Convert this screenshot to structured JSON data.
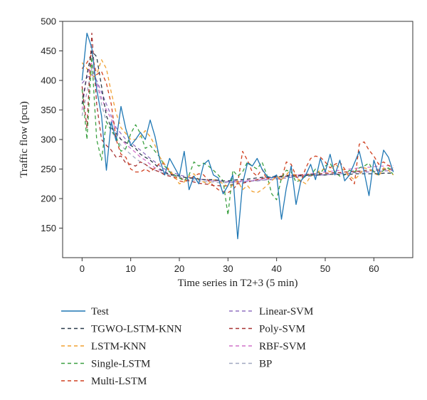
{
  "chart_data": {
    "type": "line",
    "title": "",
    "xlabel": "Time series in T2+3 (5 min)",
    "ylabel": "Traffic flow (pcu)",
    "xlim": [
      -4,
      68
    ],
    "ylim": [
      100,
      500
    ],
    "xticks": [
      0,
      10,
      20,
      30,
      40,
      50,
      60
    ],
    "yticks": [
      150,
      200,
      250,
      300,
      350,
      400,
      450,
      500
    ],
    "grid": false,
    "legend_position": "bottom",
    "series": [
      {
        "name": "Test",
        "color": "#1f77b4",
        "dash": "solid",
        "values": [
          400,
          480,
          455,
          385,
          340,
          248,
          330,
          298,
          356,
          318,
          290,
          300,
          312,
          300,
          333,
          305,
          265,
          240,
          268,
          253,
          238,
          280,
          215,
          238,
          225,
          258,
          265,
          240,
          235,
          208,
          222,
          240,
          132,
          225,
          260,
          255,
          268,
          250,
          238,
          235,
          240,
          165,
          218,
          255,
          190,
          230,
          240,
          258,
          232,
          268,
          245,
          275,
          240,
          265,
          230,
          240,
          260,
          280,
          245,
          205,
          265,
          240,
          282,
          270,
          245
        ]
      },
      {
        "name": "TGWO-LSTM-KNN",
        "color": "#2a3a4a",
        "dash": "5,4",
        "values": [
          360,
          410,
          450,
          440,
          390,
          340,
          320,
          310,
          300,
          295,
          290,
          285,
          275,
          270,
          265,
          258,
          250,
          245,
          240,
          240,
          238,
          236,
          235,
          234,
          233,
          232,
          232,
          232,
          231,
          230,
          230,
          231,
          232,
          232,
          233,
          234,
          235,
          236,
          236,
          237,
          237,
          237,
          238,
          238,
          238,
          239,
          239,
          240,
          240,
          240,
          240,
          241,
          241,
          241,
          241,
          241,
          242,
          242,
          242,
          242,
          242,
          242,
          243,
          243,
          243
        ]
      },
      {
        "name": "LSTM-KNN",
        "color": "#f0a030",
        "dash": "5,4",
        "values": [
          430,
          420,
          405,
          410,
          435,
          420,
          380,
          345,
          320,
          310,
          300,
          300,
          305,
          315,
          305,
          290,
          270,
          258,
          248,
          238,
          225,
          228,
          238,
          242,
          232,
          228,
          225,
          232,
          230,
          225,
          220,
          222,
          230,
          215,
          222,
          212,
          210,
          215,
          222,
          230,
          238,
          232,
          240,
          250,
          235,
          230,
          225,
          238,
          242,
          248,
          250,
          245,
          258,
          252,
          248,
          238,
          232,
          240,
          252,
          250,
          245,
          238,
          252,
          248,
          240
        ]
      },
      {
        "name": "Single-LSTM",
        "color": "#3aa040",
        "dash": "5,4",
        "values": [
          385,
          300,
          440,
          300,
          265,
          330,
          315,
          305,
          280,
          285,
          310,
          325,
          310,
          285,
          290,
          280,
          270,
          255,
          245,
          240,
          235,
          230,
          240,
          262,
          255,
          260,
          255,
          248,
          240,
          230,
          172,
          248,
          238,
          245,
          262,
          255,
          250,
          262,
          240,
          208,
          198,
          235,
          248,
          245,
          228,
          232,
          238,
          240,
          250,
          242,
          255,
          260,
          245,
          238,
          240,
          248,
          245,
          252,
          255,
          260,
          245,
          240,
          248,
          252,
          240
        ]
      },
      {
        "name": "Multi-LSTM",
        "color": "#d04020",
        "dash": "5,4",
        "values": [
          420,
          430,
          445,
          410,
          415,
          395,
          360,
          300,
          275,
          270,
          250,
          245,
          245,
          250,
          245,
          252,
          260,
          258,
          245,
          235,
          230,
          228,
          232,
          238,
          242,
          240,
          230,
          222,
          215,
          212,
          210,
          215,
          225,
          280,
          265,
          245,
          238,
          250,
          232,
          238,
          235,
          232,
          262,
          258,
          238,
          228,
          252,
          268,
          272,
          270,
          262,
          252,
          258,
          262,
          250,
          235,
          225,
          292,
          296,
          282,
          272,
          258,
          262,
          256,
          252
        ]
      },
      {
        "name": "Linear-SVM",
        "color": "#9070c0",
        "dash": "5,4",
        "values": [
          395,
          405,
          410,
          400,
          380,
          360,
          340,
          320,
          310,
          300,
          295,
          288,
          282,
          275,
          268,
          262,
          255,
          250,
          246,
          243,
          240,
          238,
          236,
          234,
          233,
          232,
          231,
          230,
          230,
          229,
          228,
          228,
          228,
          229,
          229,
          230,
          230,
          231,
          232,
          232,
          233,
          234,
          235,
          236,
          236,
          237,
          238,
          238,
          239,
          240,
          240,
          241,
          242,
          242,
          243,
          243,
          244,
          244,
          245,
          245,
          246,
          246,
          247,
          247,
          248
        ]
      },
      {
        "name": "Poly-SVM",
        "color": "#a83232",
        "dash": "5,4",
        "values": [
          390,
          320,
          480,
          360,
          300,
          290,
          282,
          270,
          272,
          260,
          258,
          255,
          262,
          258,
          252,
          248,
          245,
          240,
          238,
          236,
          235,
          232,
          230,
          228,
          226,
          225,
          224,
          222,
          222,
          221,
          222,
          224,
          225,
          226,
          228,
          230,
          232,
          234,
          235,
          236,
          238,
          238,
          239,
          240,
          240,
          240,
          241,
          241,
          242,
          242,
          243,
          243,
          244,
          244,
          245,
          245,
          246,
          246,
          247,
          247,
          248,
          248,
          249,
          249,
          250
        ]
      },
      {
        "name": "RBF-SVM",
        "color": "#d070c8",
        "dash": "5,4",
        "values": [
          350,
          410,
          430,
          395,
          370,
          350,
          335,
          315,
          300,
          292,
          285,
          278,
          270,
          265,
          258,
          252,
          248,
          245,
          242,
          240,
          238,
          236,
          235,
          234,
          233,
          232,
          231,
          230,
          230,
          230,
          229,
          229,
          230,
          230,
          231,
          231,
          232,
          233,
          234,
          235,
          236,
          237,
          238,
          239,
          240,
          240,
          241,
          242,
          243,
          244,
          245,
          246,
          247,
          248,
          249,
          250,
          251,
          252,
          252,
          253,
          254,
          255,
          255,
          256,
          256
        ]
      },
      {
        "name": "BP",
        "color": "#a0a8c0",
        "dash": "5,4",
        "values": [
          340,
          380,
          420,
          400,
          360,
          330,
          315,
          300,
          290,
          282,
          275,
          268,
          262,
          258,
          252,
          248,
          245,
          242,
          240,
          238,
          236,
          234,
          232,
          231,
          230,
          229,
          228,
          228,
          227,
          227,
          227,
          227,
          228,
          228,
          229,
          230,
          230,
          231,
          232,
          233,
          234,
          235,
          236,
          237,
          238,
          238,
          239,
          240,
          240,
          241,
          242,
          243,
          244,
          244,
          245,
          246,
          247,
          247,
          248,
          249,
          249,
          250,
          251,
          251,
          252
        ]
      }
    ]
  }
}
